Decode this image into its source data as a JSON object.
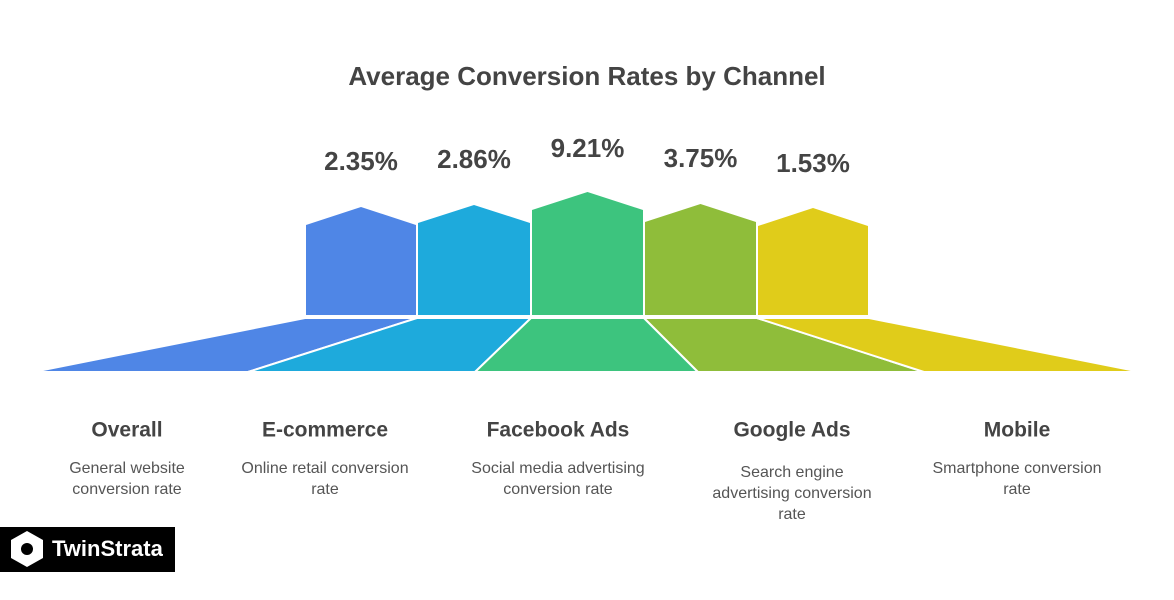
{
  "title": "Average Conversion Rates by Channel",
  "items": [
    {
      "name": "Overall",
      "value": "2.35%",
      "description": [
        "General website",
        "conversion rate"
      ]
    },
    {
      "name": "E-commerce",
      "value": "2.86%",
      "description": [
        "Online retail conversion",
        "rate"
      ]
    },
    {
      "name": "Facebook Ads",
      "value": "9.21%",
      "description": [
        "Social media advertising",
        "conversion rate"
      ]
    },
    {
      "name": "Google Ads",
      "value": "3.75%",
      "description": [
        "Search engine",
        "advertising conversion",
        "rate"
      ]
    },
    {
      "name": "Mobile",
      "value": "1.53%",
      "description": [
        "Smartphone conversion",
        "rate"
      ]
    }
  ],
  "logo": "TwinStrata"
}
